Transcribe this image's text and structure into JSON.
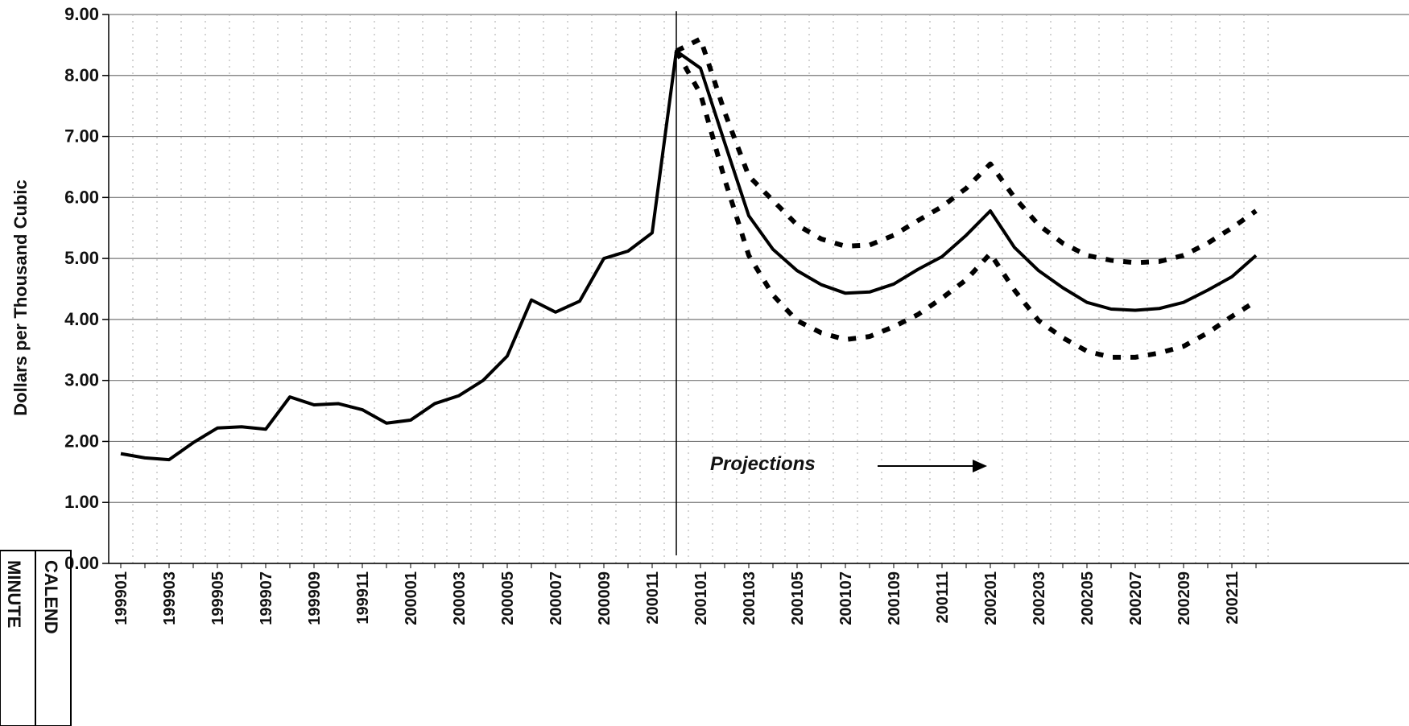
{
  "chart_data": {
    "type": "line",
    "y_label": "Dollars per Thousand Cubic",
    "annotation": "Projections",
    "margin_labels": [
      "CALEND",
      "MINUTE"
    ],
    "categories": [
      "199901",
      null,
      "199903",
      null,
      "199905",
      null,
      "199907",
      null,
      "199909",
      null,
      "199911",
      null,
      "200001",
      null,
      "200003",
      null,
      "200005",
      null,
      "200007",
      null,
      "200009",
      null,
      "200011",
      null,
      "200101",
      null,
      "200103",
      null,
      "200105",
      null,
      "200107",
      null,
      "200109",
      null,
      "200111",
      null,
      "200201",
      null,
      "200203",
      null,
      "200205",
      null,
      "200207",
      null,
      "200209",
      null,
      "200211",
      null
    ],
    "series": [
      {
        "color": "#000000",
        "dash": false,
        "values": [
          1.8,
          1.73,
          1.7,
          1.98,
          2.22,
          2.24,
          2.2,
          2.73,
          2.6,
          2.62,
          2.52,
          2.3,
          2.35,
          2.62,
          2.75,
          3.0,
          3.4,
          4.32,
          4.12,
          4.3,
          5.0,
          5.12,
          5.42,
          8.4,
          8.12,
          6.9,
          5.7,
          5.15,
          4.8,
          4.57,
          4.43,
          4.45,
          4.58,
          4.82,
          5.03,
          5.38,
          5.78,
          5.18,
          4.8,
          4.52,
          4.28,
          4.17,
          4.15,
          4.18,
          4.28,
          4.48,
          4.7,
          5.05
        ]
      },
      {
        "color": "#000000",
        "dash": true,
        "values": [
          null,
          null,
          null,
          null,
          null,
          null,
          null,
          null,
          null,
          null,
          null,
          null,
          null,
          null,
          null,
          null,
          null,
          null,
          null,
          null,
          null,
          null,
          null,
          8.4,
          8.6,
          7.4,
          6.35,
          5.95,
          5.55,
          5.32,
          5.2,
          5.22,
          5.38,
          5.62,
          5.85,
          6.15,
          6.55,
          6.0,
          5.55,
          5.25,
          5.05,
          4.97,
          4.93,
          4.95,
          5.05,
          5.25,
          5.5,
          5.78
        ]
      },
      {
        "color": "#000000",
        "dash": true,
        "values": [
          null,
          null,
          null,
          null,
          null,
          null,
          null,
          null,
          null,
          null,
          null,
          null,
          null,
          null,
          null,
          null,
          null,
          null,
          null,
          null,
          null,
          null,
          null,
          8.4,
          7.7,
          6.3,
          5.05,
          4.4,
          3.98,
          3.78,
          3.67,
          3.72,
          3.88,
          4.08,
          4.35,
          4.65,
          5.08,
          4.48,
          3.98,
          3.7,
          3.48,
          3.38,
          3.38,
          3.45,
          3.56,
          3.78,
          4.05,
          4.3
        ]
      }
    ],
    "ylim": [
      0,
      9
    ],
    "yticks": [
      {
        "value": 0,
        "label": "0.00"
      },
      {
        "value": 1,
        "label": "1.00"
      },
      {
        "value": 2,
        "label": "2.00"
      },
      {
        "value": 3,
        "label": "3.00"
      },
      {
        "value": 4,
        "label": "4.00"
      },
      {
        "value": 5,
        "label": "5.00"
      },
      {
        "value": 6,
        "label": "6.00"
      },
      {
        "value": 7,
        "label": "7.00"
      },
      {
        "value": 8,
        "label": "8.00"
      },
      {
        "value": 9,
        "label": "9.00"
      }
    ],
    "grid": true
  }
}
